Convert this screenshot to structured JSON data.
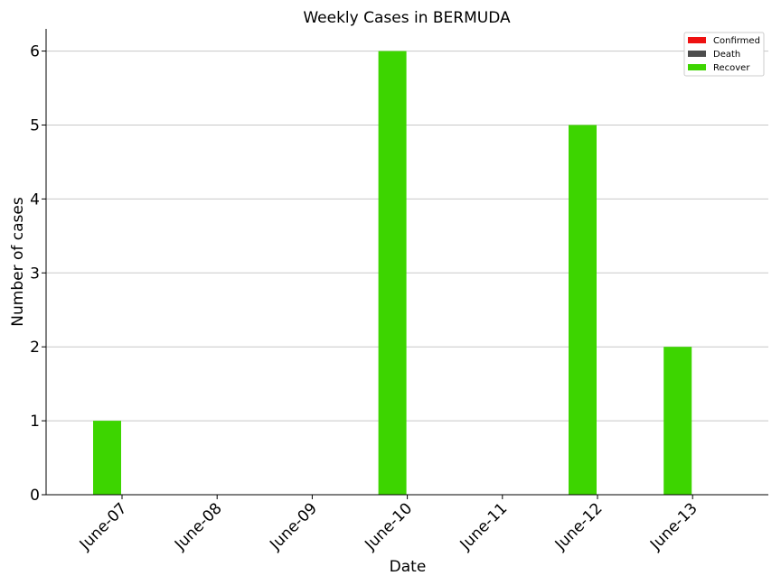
{
  "chart_data": {
    "type": "bar",
    "title": "Weekly Cases in BERMUDA",
    "xlabel": "Date",
    "ylabel": "Number of cases",
    "categories": [
      "June-07",
      "June-08",
      "June-09",
      "June-10",
      "June-11",
      "June-12",
      "June-13"
    ],
    "series": [
      {
        "name": "Confirmed",
        "color": "#ee1111",
        "values": [
          0,
          0,
          0,
          0,
          0,
          0,
          0
        ]
      },
      {
        "name": "Death",
        "color": "#4d4d4d",
        "values": [
          0,
          0,
          0,
          0,
          0,
          0,
          0
        ]
      },
      {
        "name": "Recover",
        "color": "#3dd500",
        "values": [
          1,
          0,
          0,
          6,
          0,
          5,
          2
        ]
      }
    ],
    "ylim": [
      0,
      6.3
    ],
    "yticks": [
      0,
      1,
      2,
      3,
      4,
      5,
      6
    ],
    "grid": "horizontal",
    "legend_position": "top-right"
  }
}
